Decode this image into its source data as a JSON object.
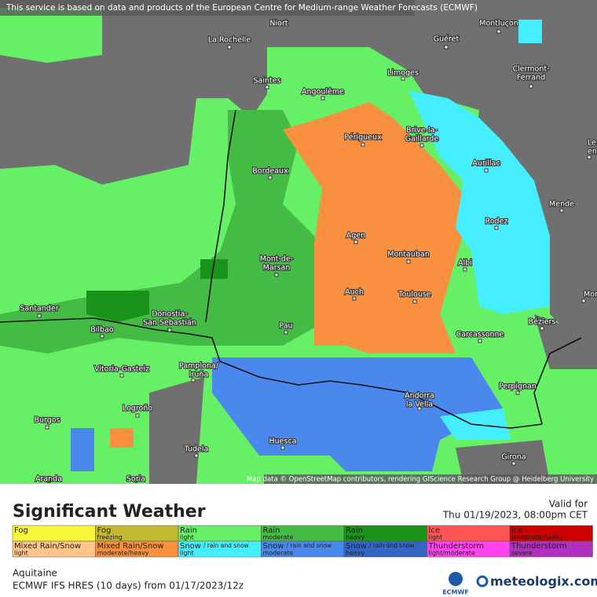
{
  "header": {
    "notice": "This service is based on data and products of the European Centre for Medium-range Weather Forecasts (ECMWF)"
  },
  "map": {
    "credit": "Map data © OpenStreetMap contributors, rendering GIScience Research Group @ Heidelberg University",
    "cities": [
      {
        "lines": [
          "Niort"
        ]
      },
      {
        "lines": [
          "La Rochelle"
        ]
      },
      {
        "lines": [
          "Guéret"
        ]
      },
      {
        "lines": [
          "Montluçon"
        ]
      },
      {
        "lines": [
          "Saintes"
        ]
      },
      {
        "lines": [
          "Angoulême"
        ]
      },
      {
        "lines": [
          "Limoges"
        ]
      },
      {
        "lines": [
          "Clermont-",
          "Ferrand"
        ]
      },
      {
        "lines": [
          "Brive-la-",
          "Gaillarde"
        ]
      },
      {
        "lines": [
          "Périgueux"
        ]
      },
      {
        "lines": [
          "Aurillac"
        ]
      },
      {
        "lines": [
          "Le Pu",
          "en-Ve"
        ]
      },
      {
        "lines": [
          "Bordeaux"
        ]
      },
      {
        "lines": [
          "Mende"
        ]
      },
      {
        "lines": [
          "Rodez"
        ]
      },
      {
        "lines": [
          "Agen"
        ]
      },
      {
        "lines": [
          "Montauban"
        ]
      },
      {
        "lines": [
          "Albi"
        ]
      },
      {
        "lines": [
          "Mont-de-",
          "Marsan"
        ]
      },
      {
        "lines": [
          "Auch"
        ]
      },
      {
        "lines": [
          "Toulouse"
        ]
      },
      {
        "lines": [
          "Montpe"
        ]
      },
      {
        "lines": [
          "Santander"
        ]
      },
      {
        "lines": [
          "Bilbao"
        ]
      },
      {
        "lines": [
          "Donostia-",
          "San Sebastián"
        ]
      },
      {
        "lines": [
          "Pau"
        ]
      },
      {
        "lines": [
          "Béziers"
        ]
      },
      {
        "lines": [
          "Carcassonne"
        ]
      },
      {
        "lines": [
          "Pamplona/",
          "Iruña"
        ]
      },
      {
        "lines": [
          "Vitoria-Gasteiz"
        ]
      },
      {
        "lines": [
          "Perpignan"
        ]
      },
      {
        "lines": [
          "Andorra",
          "la Vella"
        ]
      },
      {
        "lines": [
          "Logroño"
        ]
      },
      {
        "lines": [
          "Burgos"
        ]
      },
      {
        "lines": [
          "Huesca"
        ]
      },
      {
        "lines": [
          "Tudela"
        ]
      },
      {
        "lines": [
          "Girona"
        ]
      },
      {
        "lines": [
          "Aranda"
        ]
      },
      {
        "lines": [
          "Soria"
        ]
      }
    ]
  },
  "legend": {
    "title": "Significant Weather",
    "valid_label": "Valid for",
    "valid_time": "Thu 01/19/2023, 08:00pm CET",
    "items": [
      {
        "name": "Fog",
        "color": "#f7f73c"
      },
      {
        "name": "Fog",
        "level": "freezing",
        "color": "#c4ba32"
      },
      {
        "name": "Rain",
        "level": "light",
        "color": "#66f066"
      },
      {
        "name": "Rain",
        "level": "moderate",
        "color": "#44bb44"
      },
      {
        "name": "Rain",
        "level": "heavy",
        "color": "#1a931a"
      },
      {
        "name": "Ice",
        "level": "light",
        "color": "#ff5555"
      },
      {
        "name": "Ice",
        "level": "moderate/heavy",
        "color": "#cc0000"
      },
      {
        "name": "Mixed Rain/Snow",
        "level": "light",
        "color": "#ffc58a"
      },
      {
        "name": "Mixed Rain/Snow",
        "level": "moderate/heavy",
        "color": "#f89040"
      },
      {
        "name": "Snow",
        "note": "/ rain and snow",
        "level": "light",
        "color": "#44eeff"
      },
      {
        "name": "Snow",
        "note": "/ rain and snow",
        "level": "moderate",
        "color": "#4a88ee"
      },
      {
        "name": "Snow",
        "note": "/ rain and snow",
        "level": "heavy",
        "color": "#3565c4"
      },
      {
        "name": "Thunderstorm",
        "level": "light/moderate",
        "color": "#ff44ee"
      },
      {
        "name": "Thunderstorm",
        "level": "severe",
        "color": "#b030c0"
      }
    ]
  },
  "footer": {
    "region": "Aquitaine",
    "model": "ECMWF IFS HRES (10 days) from  01/17/2023/12z",
    "ecmwf": "ECMWF",
    "brand": "meteologix.com"
  }
}
